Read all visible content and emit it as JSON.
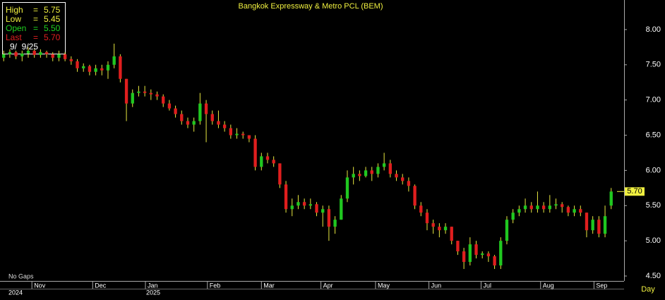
{
  "chart_data": {
    "type": "candlestick",
    "title": "Bangkok Expressway & Metro PCL (BEM)",
    "info": [
      {
        "label": "High",
        "value": "5.75",
        "color": "#f0f040"
      },
      {
        "label": "Low",
        "value": "5.45",
        "color": "#f0f040"
      },
      {
        "label": "Open",
        "value": "5.50",
        "color": "#20d020"
      },
      {
        "label": "Last",
        "value": "5.70",
        "color": "#e02020"
      }
    ],
    "separator": "=",
    "date": "9/  9/25",
    "note": "No Gaps",
    "period": "Day",
    "last_price_label": "5.70",
    "years": [
      "2024",
      "2025"
    ],
    "up_color": "#20c820",
    "down_color": "#e01e1e",
    "wick_color": "#e8e840",
    "title_color": "#f0f040",
    "ylim": [
      4.43,
      8.42
    ],
    "yticks": [
      {
        "value": 4.5,
        "label": "4.50"
      },
      {
        "value": 5,
        "label": "5.00"
      },
      {
        "value": 5.5,
        "label": "5.50"
      },
      {
        "value": 6,
        "label": "6.00"
      },
      {
        "value": 6.5,
        "label": "6.50"
      },
      {
        "value": 7,
        "label": "7.00"
      },
      {
        "value": 7.5,
        "label": "7.50"
      },
      {
        "value": 8,
        "label": "8.00"
      }
    ],
    "xlim": [
      -0.6,
      101.1
    ],
    "xticks": [
      {
        "value": 4.6,
        "label": "Nov"
      },
      {
        "value": 14.5,
        "label": "Dec"
      },
      {
        "value": 23.1,
        "label": "Jan"
      },
      {
        "value": 33.2,
        "label": "Feb"
      },
      {
        "value": 42.0,
        "label": "Mar"
      },
      {
        "value": 51.7,
        "label": "Apr"
      },
      {
        "value": 60.6,
        "label": "May"
      },
      {
        "value": 69.3,
        "label": "Jun"
      },
      {
        "value": 77.8,
        "label": "Jul"
      },
      {
        "value": 87.5,
        "label": "Aug"
      },
      {
        "value": 96.2,
        "label": "Sep"
      }
    ],
    "grid": false,
    "ohlc": [
      [
        7.6,
        7.7,
        7.55,
        7.65
      ],
      [
        7.65,
        7.72,
        7.6,
        7.68
      ],
      [
        7.68,
        7.7,
        7.58,
        7.62
      ],
      [
        7.62,
        7.7,
        7.55,
        7.66
      ],
      [
        7.66,
        7.75,
        7.6,
        7.7
      ],
      [
        7.7,
        7.72,
        7.6,
        7.64
      ],
      [
        7.64,
        7.72,
        7.6,
        7.68
      ],
      [
        7.68,
        7.7,
        7.6,
        7.65
      ],
      [
        7.65,
        7.68,
        7.55,
        7.6
      ],
      [
        7.6,
        7.7,
        7.55,
        7.65
      ],
      [
        7.65,
        7.68,
        7.55,
        7.58
      ],
      [
        7.58,
        7.62,
        7.5,
        7.55
      ],
      [
        7.55,
        7.58,
        7.4,
        7.45
      ],
      [
        7.45,
        7.52,
        7.4,
        7.48
      ],
      [
        7.48,
        7.5,
        7.35,
        7.4
      ],
      [
        7.4,
        7.5,
        7.35,
        7.45
      ],
      [
        7.45,
        7.5,
        7.35,
        7.42
      ],
      [
        7.42,
        7.55,
        7.3,
        7.5
      ],
      [
        7.5,
        7.8,
        7.45,
        7.62
      ],
      [
        7.62,
        7.65,
        7.25,
        7.3
      ],
      [
        7.3,
        7.3,
        6.7,
        6.95
      ],
      [
        6.95,
        7.15,
        6.9,
        7.1
      ],
      [
        7.1,
        7.2,
        7.05,
        7.12
      ],
      [
        7.12,
        7.2,
        7.05,
        7.1
      ],
      [
        7.1,
        7.15,
        7.0,
        7.08
      ],
      [
        7.08,
        7.12,
        7.0,
        7.05
      ],
      [
        7.05,
        7.08,
        6.9,
        6.95
      ],
      [
        6.95,
        7.0,
        6.85,
        6.88
      ],
      [
        6.88,
        6.92,
        6.75,
        6.8
      ],
      [
        6.8,
        6.85,
        6.65,
        6.7
      ],
      [
        6.7,
        6.75,
        6.6,
        6.65
      ],
      [
        6.65,
        6.75,
        6.55,
        6.7
      ],
      [
        6.7,
        7.1,
        6.65,
        6.95
      ],
      [
        6.95,
        7.0,
        6.4,
        6.8
      ],
      [
        6.8,
        6.85,
        6.65,
        6.7
      ],
      [
        6.7,
        6.85,
        6.6,
        6.65
      ],
      [
        6.65,
        6.7,
        6.55,
        6.6
      ],
      [
        6.6,
        6.65,
        6.45,
        6.5
      ],
      [
        6.5,
        6.6,
        6.45,
        6.52
      ],
      [
        6.52,
        6.55,
        6.45,
        6.5
      ],
      [
        6.5,
        6.5,
        6.4,
        6.45
      ],
      [
        6.45,
        6.5,
        6.0,
        6.05
      ],
      [
        6.05,
        6.25,
        6.0,
        6.2
      ],
      [
        6.2,
        6.25,
        6.1,
        6.15
      ],
      [
        6.15,
        6.2,
        6.05,
        6.1
      ],
      [
        6.1,
        6.1,
        5.75,
        5.8
      ],
      [
        5.8,
        5.85,
        5.4,
        5.45
      ],
      [
        5.45,
        5.6,
        5.35,
        5.5
      ],
      [
        5.5,
        5.65,
        5.45,
        5.55
      ],
      [
        5.55,
        5.6,
        5.45,
        5.5
      ],
      [
        5.5,
        5.6,
        5.45,
        5.52
      ],
      [
        5.52,
        5.55,
        5.35,
        5.4
      ],
      [
        5.4,
        5.5,
        5.2,
        5.45
      ],
      [
        5.45,
        5.5,
        5.0,
        5.2
      ],
      [
        5.2,
        5.35,
        5.1,
        5.3
      ],
      [
        5.3,
        5.65,
        5.3,
        5.6
      ],
      [
        5.6,
        6.0,
        5.55,
        5.9
      ],
      [
        5.9,
        6.05,
        5.8,
        5.95
      ],
      [
        5.95,
        6.0,
        5.85,
        5.92
      ],
      [
        5.92,
        6.05,
        5.9,
        6.0
      ],
      [
        6.0,
        6.05,
        5.85,
        5.95
      ],
      [
        5.95,
        6.1,
        5.9,
        6.05
      ],
      [
        6.05,
        6.25,
        6.0,
        6.1
      ],
      [
        6.1,
        6.15,
        5.9,
        5.95
      ],
      [
        5.95,
        6.0,
        5.85,
        5.9
      ],
      [
        5.9,
        5.95,
        5.8,
        5.85
      ],
      [
        5.85,
        5.9,
        5.7,
        5.78
      ],
      [
        5.78,
        5.8,
        5.45,
        5.5
      ],
      [
        5.5,
        5.55,
        5.35,
        5.4
      ],
      [
        5.4,
        5.45,
        5.15,
        5.25
      ],
      [
        5.25,
        5.3,
        5.1,
        5.2
      ],
      [
        5.2,
        5.25,
        5.05,
        5.15
      ],
      [
        5.15,
        5.25,
        5.1,
        5.2
      ],
      [
        5.2,
        5.2,
        4.95,
        5.0
      ],
      [
        5.0,
        5.0,
        4.8,
        4.85
      ],
      [
        4.85,
        4.9,
        4.6,
        4.7
      ],
      [
        4.7,
        5.05,
        4.65,
        4.95
      ],
      [
        4.95,
        5.0,
        4.75,
        4.8
      ],
      [
        4.8,
        4.85,
        4.75,
        4.82
      ],
      [
        4.82,
        4.85,
        4.7,
        4.78
      ],
      [
        4.78,
        4.8,
        4.6,
        4.65
      ],
      [
        4.65,
        5.05,
        4.6,
        5.0
      ],
      [
        5.0,
        5.35,
        4.95,
        5.3
      ],
      [
        5.3,
        5.45,
        5.25,
        5.4
      ],
      [
        5.4,
        5.5,
        5.35,
        5.45
      ],
      [
        5.45,
        5.6,
        5.4,
        5.5
      ],
      [
        5.5,
        5.55,
        5.4,
        5.45
      ],
      [
        5.45,
        5.7,
        5.4,
        5.5
      ],
      [
        5.5,
        5.55,
        5.4,
        5.45
      ],
      [
        5.45,
        5.65,
        5.4,
        5.5
      ],
      [
        5.5,
        5.6,
        5.45,
        5.52
      ],
      [
        5.52,
        5.55,
        5.4,
        5.48
      ],
      [
        5.48,
        5.5,
        5.35,
        5.4
      ],
      [
        5.4,
        5.5,
        5.35,
        5.45
      ],
      [
        5.45,
        5.5,
        5.35,
        5.4
      ],
      [
        5.4,
        5.4,
        5.05,
        5.15
      ],
      [
        5.15,
        5.35,
        5.1,
        5.3
      ],
      [
        5.3,
        5.35,
        5.05,
        5.1
      ],
      [
        5.1,
        5.5,
        5.05,
        5.35
      ],
      [
        5.5,
        5.75,
        5.45,
        5.7
      ]
    ]
  }
}
